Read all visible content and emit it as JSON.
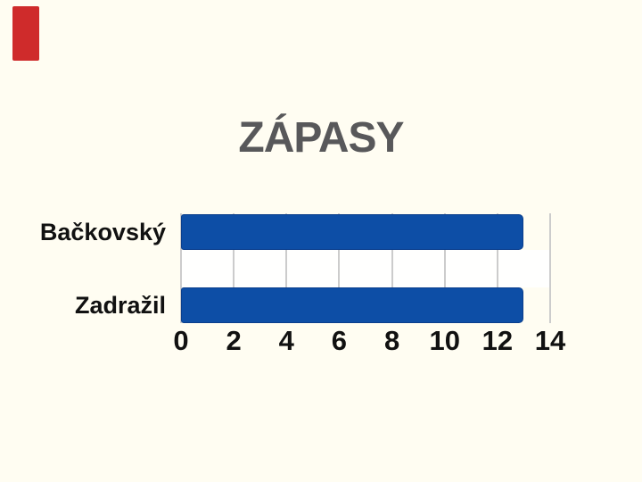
{
  "page": {
    "background": "#fffdf2",
    "accent_bar_color": "#cf2b2b"
  },
  "chart_data": {
    "type": "bar",
    "orientation": "horizontal",
    "title": "ZÁPASY",
    "categories": [
      "Bačkovský",
      "Zadražil"
    ],
    "values": [
      13,
      13
    ],
    "xlabel": "",
    "ylabel": "",
    "xlim": [
      0,
      14
    ],
    "xticks": [
      0,
      2,
      4,
      6,
      8,
      10,
      12,
      14
    ],
    "grid": "vertical",
    "legend_position": "none",
    "bar_color": "#0d4ea6",
    "plot_band_color": "#fffffe",
    "gridline_color": "#cccccc",
    "title_color": "#58585a",
    "text_color": "#111111"
  }
}
